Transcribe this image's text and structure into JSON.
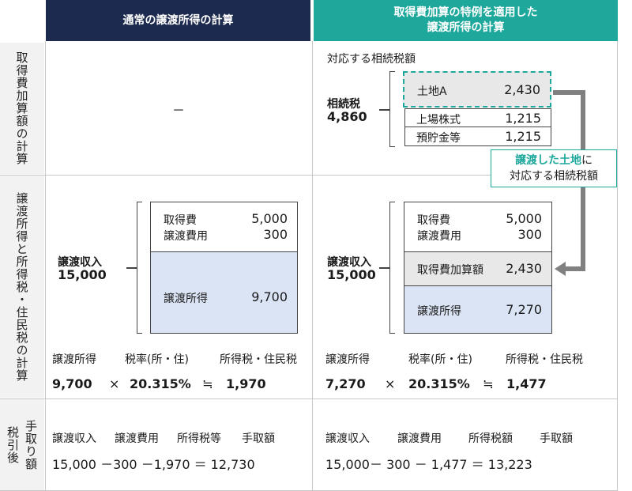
{
  "headers": {
    "normal": "通常の譲渡所得の計算",
    "special_line1": "取得費加算の特例を適用した",
    "special_line2": "譲渡所得の計算"
  },
  "row_labels": {
    "row1": "取得費加算額の計算",
    "row2": "譲渡所得と所得税・住民税の計算",
    "row3_col1": "税引後",
    "row3_col2": "手取り額"
  },
  "row1": {
    "normal_dash": "－",
    "special_title": "対応する相続税額",
    "inheritance_tax_label": "相続税",
    "inheritance_tax_value": "4,860",
    "items": [
      {
        "label": "土地A",
        "value": "2,430"
      },
      {
        "label": "上場株式",
        "value": "1,215"
      },
      {
        "label": "預貯金等",
        "value": "1,215"
      }
    ]
  },
  "callout": {
    "highlight": "譲渡した土地",
    "suffix": "に",
    "line2": "対応する相続税額"
  },
  "row2": {
    "normal": {
      "income_label": "譲渡収入",
      "income_value": "15,000",
      "cost_label": "取得費",
      "cost_value": "5,000",
      "expense_label": "譲渡費用",
      "expense_value": "300",
      "gain_label": "譲渡所得",
      "gain_value": "9,700",
      "calc_labels": [
        "譲渡所得",
        "税率(所・住)",
        "所得税・住民税"
      ],
      "calc_gain": "9,700",
      "calc_times": "×",
      "calc_rate": "20.315%",
      "calc_approx": "≒",
      "calc_tax": "1,970"
    },
    "special": {
      "income_label": "譲渡収入",
      "income_value": "15,000",
      "cost_label": "取得費",
      "cost_value": "5,000",
      "expense_label": "譲渡費用",
      "expense_value": "300",
      "addition_label": "取得費加算額",
      "addition_value": "2,430",
      "gain_label": "譲渡所得",
      "gain_value": "7,270",
      "calc_labels": [
        "譲渡所得",
        "税率(所・住)",
        "所得税・住民税"
      ],
      "calc_gain": "7,270",
      "calc_times": "×",
      "calc_rate": "20.315%",
      "calc_approx": "≒",
      "calc_tax": "1,477"
    }
  },
  "row3": {
    "normal": {
      "labels": [
        "譲渡収入",
        "譲渡費用",
        "所得税等",
        "手取額"
      ],
      "formula": "15,000 －300 －1,970 ＝ 12,730"
    },
    "special": {
      "labels": [
        "譲渡収入",
        "譲渡費用",
        "所得税額",
        "手取額"
      ],
      "formula": "15,000－ 300 － 1,477 ＝ 13,223"
    }
  },
  "colors": {
    "header_navy": "#1d2a4f",
    "header_teal": "#1ea89c",
    "label_bg": "#f2f2f2",
    "gain_fill": "#dbe4f5",
    "highlight_fill": "#e8e8e8",
    "arrow_gray": "#808080",
    "accent_teal": "#1ea89c"
  }
}
